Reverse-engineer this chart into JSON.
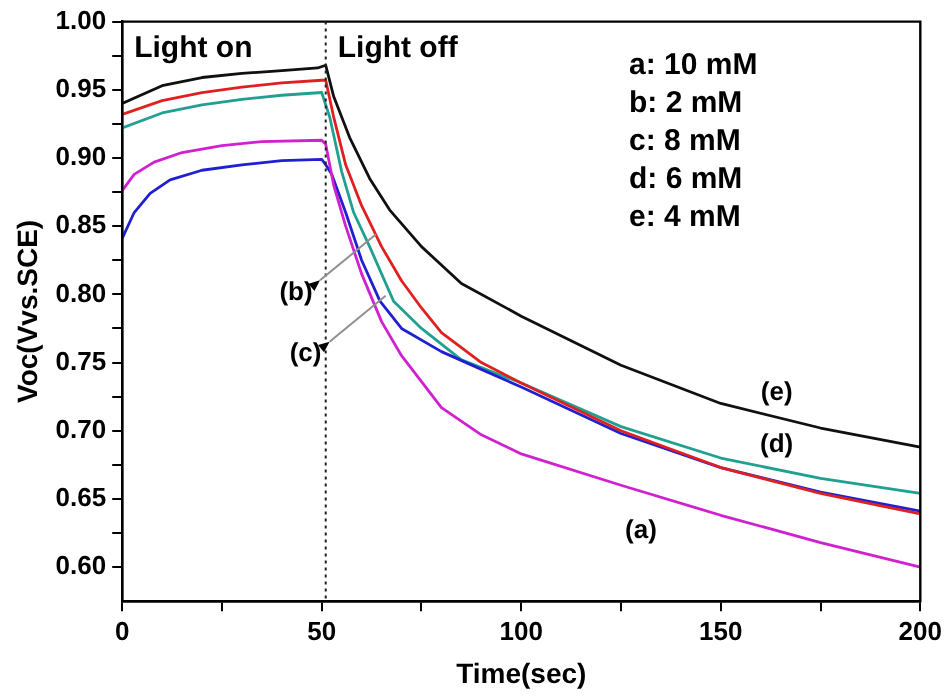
{
  "chart_data": {
    "type": "line",
    "xlabel": "Time(sec)",
    "ylabel": "Voc(Vvs.SCE)",
    "xlim": [
      0,
      200
    ],
    "xticks": [
      0,
      {
        "value": 25,
        "label": null
      },
      50,
      {
        "value": 75,
        "label": null
      },
      100,
      {
        "value": 125,
        "label": null
      },
      150,
      {
        "value": 175,
        "label": null
      },
      200
    ],
    "ylim": [
      0.575,
      1.0
    ],
    "yticks": [
      {
        "value": 0.6,
        "label": "0.60"
      },
      {
        "value": 0.625,
        "label": null
      },
      {
        "value": 0.65,
        "label": "0.65"
      },
      {
        "value": 0.675,
        "label": null
      },
      {
        "value": 0.7,
        "label": "0.70"
      },
      {
        "value": 0.725,
        "label": null
      },
      {
        "value": 0.75,
        "label": "0.75"
      },
      {
        "value": 0.775,
        "label": null
      },
      {
        "value": 0.8,
        "label": "0.80"
      },
      {
        "value": 0.825,
        "label": null
      },
      {
        "value": 0.85,
        "label": "0.85"
      },
      {
        "value": 0.875,
        "label": null
      },
      {
        "value": 0.9,
        "label": "0.90"
      },
      {
        "value": 0.925,
        "label": null
      },
      {
        "value": 0.95,
        "label": "0.95"
      },
      {
        "value": 0.975,
        "label": null
      },
      {
        "value": 1.0,
        "label": "1.00"
      }
    ],
    "grid": false,
    "legend": false,
    "marker": "none",
    "line_style": "solid",
    "series": [
      {
        "color": "#d020d0",
        "x": [
          0,
          3,
          8,
          15,
          25,
          35,
          50,
          51,
          53,
          56,
          60,
          65,
          70,
          80,
          90,
          100,
          125,
          150,
          175,
          200
        ],
        "values": [
          0.876,
          0.888,
          0.897,
          0.904,
          0.909,
          0.912,
          0.913,
          0.91,
          0.88,
          0.85,
          0.815,
          0.78,
          0.755,
          0.717,
          0.697,
          0.683,
          0.66,
          0.638,
          0.618,
          0.6
        ]
      },
      {
        "color": "#e02020",
        "x": [
          0,
          10,
          20,
          30,
          40,
          50,
          51,
          53,
          56,
          60,
          65,
          70,
          75,
          80,
          90,
          100,
          125,
          150,
          175,
          200
        ],
        "values": [
          0.932,
          0.942,
          0.948,
          0.952,
          0.955,
          0.957,
          0.957,
          0.93,
          0.895,
          0.865,
          0.835,
          0.81,
          0.79,
          0.772,
          0.75,
          0.735,
          0.7,
          0.673,
          0.654,
          0.639
        ]
      },
      {
        "color": "#2020d0",
        "x": [
          0,
          3,
          7,
          12,
          20,
          30,
          40,
          50,
          51,
          52.5,
          56,
          60,
          64.6,
          70,
          80,
          90,
          100,
          125,
          150,
          175,
          200
        ],
        "values": [
          0.841,
          0.86,
          0.874,
          0.884,
          0.891,
          0.895,
          0.898,
          0.899,
          0.895,
          0.888,
          0.86,
          0.825,
          0.795,
          0.775,
          0.758,
          0.745,
          0.732,
          0.698,
          0.673,
          0.655,
          0.641
        ]
      },
      {
        "color": "#20a090",
        "x": [
          0,
          10,
          20,
          30,
          40,
          50,
          52,
          55,
          58,
          62,
          68,
          75,
          85,
          100,
          125,
          150,
          175,
          200
        ],
        "values": [
          0.922,
          0.933,
          0.939,
          0.943,
          0.946,
          0.948,
          0.93,
          0.89,
          0.86,
          0.835,
          0.795,
          0.775,
          0.752,
          0.735,
          0.703,
          0.68,
          0.665,
          0.654
        ]
      },
      {
        "color": "#101010",
        "x": [
          0,
          10,
          20,
          30,
          40,
          49,
          51,
          53,
          57,
          62,
          67,
          75,
          85,
          100,
          125,
          150,
          175,
          200
        ],
        "values": [
          0.94,
          0.953,
          0.959,
          0.962,
          0.964,
          0.966,
          0.968,
          0.945,
          0.915,
          0.885,
          0.862,
          0.835,
          0.808,
          0.784,
          0.748,
          0.72,
          0.702,
          0.688
        ]
      }
    ],
    "ref_lines": [
      {
        "axis": "x",
        "value": 51,
        "line_style": "dotted",
        "color": "#202020"
      }
    ],
    "annotations": [
      "Light on",
      "Light off",
      "a: 10 mM",
      "b: 2 mM",
      "c: 8 mM",
      "d: 6 mM",
      "e: 4 mM",
      {
        "text": "(a)",
        "x": 130,
        "y": 0.656
      },
      {
        "text": "(b)",
        "x": 63.6,
        "y": 0.844
      },
      {
        "text": "(c)",
        "x": 66,
        "y": 0.799
      },
      {
        "text": "(d)",
        "x": 164,
        "y": 0.672
      },
      {
        "text": "(e)",
        "x": 164,
        "y": 0.71
      }
    ]
  }
}
